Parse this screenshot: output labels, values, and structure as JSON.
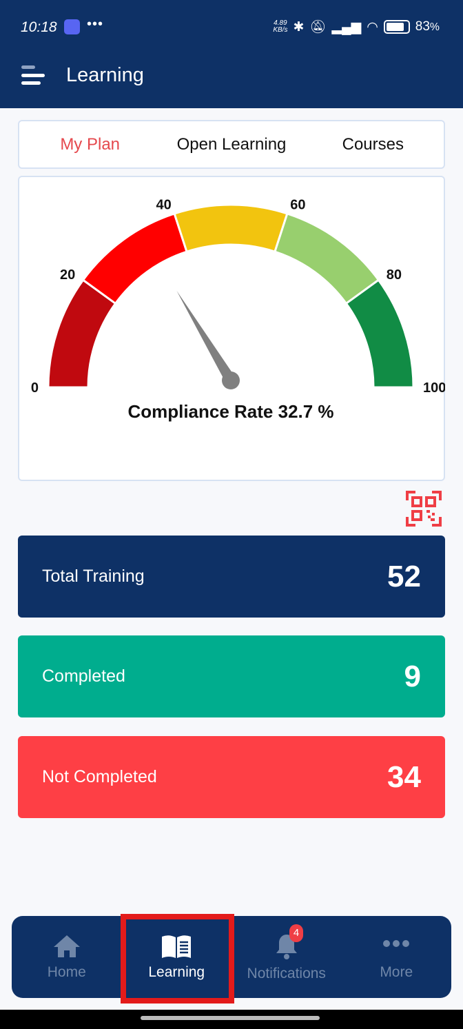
{
  "status_bar": {
    "time": "10:18",
    "speed": "4.89",
    "speed_unit": "KB/s",
    "battery": "83",
    "battery_unit": "%"
  },
  "header": {
    "title": "Learning"
  },
  "tabs": [
    {
      "label": "My Plan",
      "active": true
    },
    {
      "label": "Open Learning"
    },
    {
      "label": "Courses"
    }
  ],
  "gauge": {
    "value": 32.7,
    "min": 0,
    "max": 100,
    "label": "Compliance Rate 32.7 %",
    "ticks": [
      "0",
      "20",
      "40",
      "60",
      "80",
      "100"
    ],
    "bands": [
      {
        "from": 0,
        "to": 20,
        "color": "#c0090f"
      },
      {
        "from": 20,
        "to": 40,
        "color": "#ff0000"
      },
      {
        "from": 40,
        "to": 60,
        "color": "#f2c40f"
      },
      {
        "from": 60,
        "to": 80,
        "color": "#98cf6e"
      },
      {
        "from": 80,
        "to": 100,
        "color": "#118c45"
      }
    ],
    "needle_color": "#808080"
  },
  "stats": [
    {
      "label": "Total Training",
      "value": "52",
      "color": "#0e3166"
    },
    {
      "label": "Completed",
      "value": "9",
      "color": "#00ad8e"
    },
    {
      "label": "Not Completed",
      "value": "34",
      "color": "#fe3f45"
    }
  ],
  "nav": {
    "items": [
      {
        "label": "Home",
        "icon": "home-icon"
      },
      {
        "label": "Learning",
        "icon": "book-icon",
        "active": true
      },
      {
        "label": "Notifications",
        "icon": "bell-icon",
        "badge": "4"
      },
      {
        "label": "More",
        "icon": "more-icon"
      }
    ]
  }
}
